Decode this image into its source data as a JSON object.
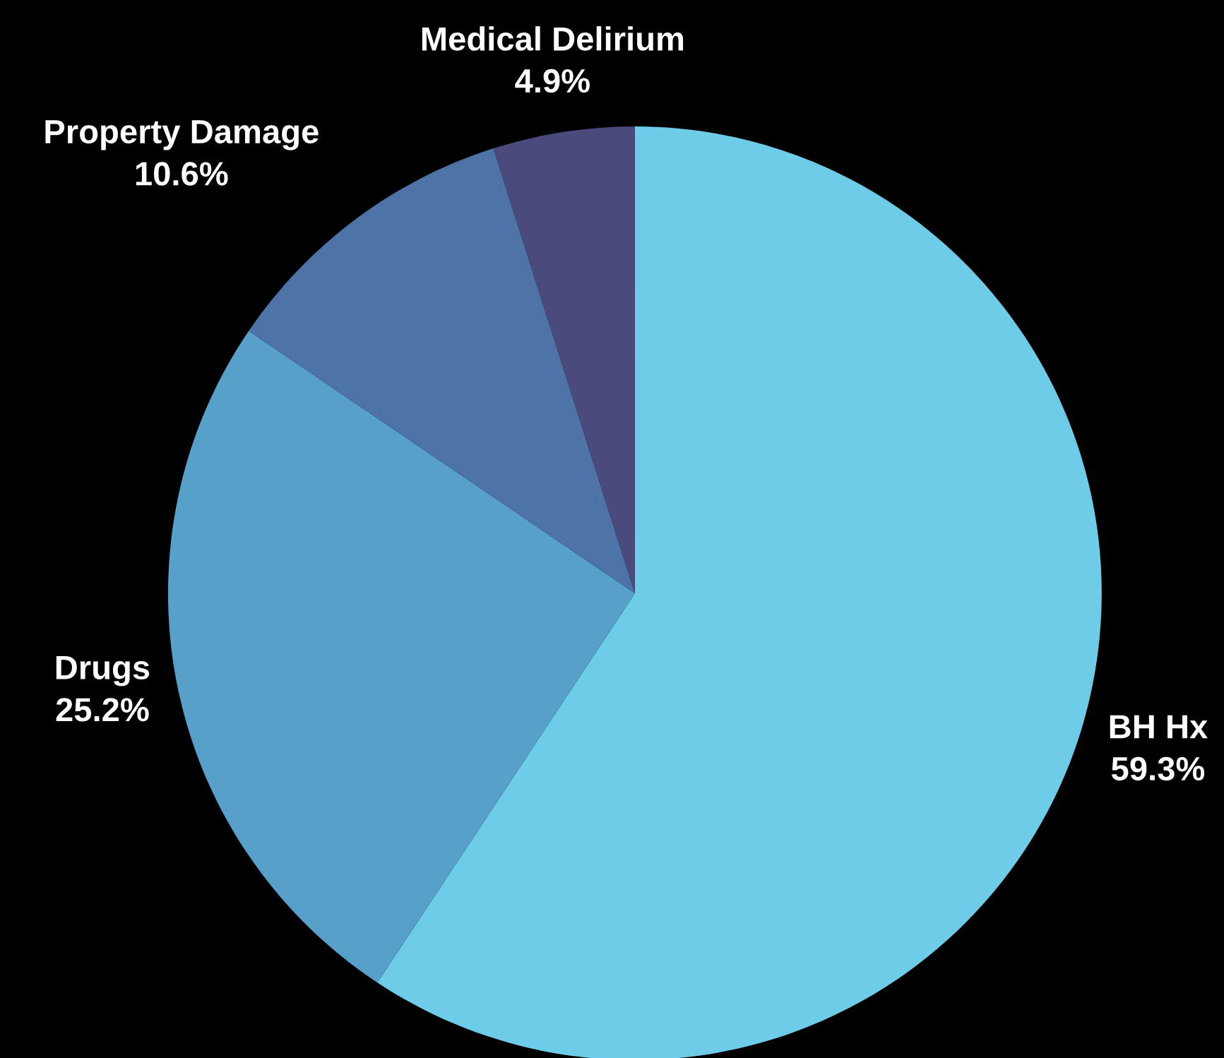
{
  "chart_data": {
    "type": "pie",
    "categories": [
      "BH Hx",
      "Drugs",
      "Property Damage",
      "Medical Delirium"
    ],
    "values": [
      59.3,
      25.2,
      10.6,
      4.9
    ],
    "colors": [
      "#6dcce8",
      "#57a0ca",
      "#4e73a6",
      "#4a4a7c"
    ],
    "value_labels": [
      "59.3%",
      "25.2%",
      "10.6%",
      "4.9%"
    ]
  }
}
